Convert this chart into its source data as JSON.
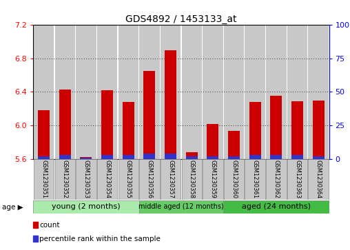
{
  "title": "GDS4892 / 1453133_at",
  "samples": [
    "GSM1230351",
    "GSM1230352",
    "GSM1230353",
    "GSM1230354",
    "GSM1230355",
    "GSM1230356",
    "GSM1230357",
    "GSM1230358",
    "GSM1230359",
    "GSM1230360",
    "GSM1230361",
    "GSM1230362",
    "GSM1230363",
    "GSM1230364"
  ],
  "count_values": [
    6.18,
    6.43,
    5.62,
    6.42,
    6.28,
    6.65,
    6.9,
    5.68,
    6.02,
    5.93,
    6.28,
    6.35,
    6.29,
    6.3
  ],
  "percentile_values": [
    2,
    3,
    1,
    3,
    3,
    4,
    4,
    2,
    2,
    2,
    3,
    3,
    3,
    2
  ],
  "y_min": 5.6,
  "y_max": 7.2,
  "y_ticks_left": [
    5.6,
    6.0,
    6.4,
    6.8,
    7.2
  ],
  "y_ticks_right": [
    0,
    25,
    50,
    75,
    100
  ],
  "bar_color_red": "#cc0000",
  "bar_color_blue": "#3333cc",
  "bar_width": 0.55,
  "blue_bar_width": 0.55,
  "groups": [
    {
      "label": "young (2 months)",
      "start": 0,
      "end": 5,
      "color": "#aaeaaa"
    },
    {
      "label": "middle aged (12 months)",
      "start": 5,
      "end": 9,
      "color": "#66cc66"
    },
    {
      "label": "aged (24 months)",
      "start": 9,
      "end": 14,
      "color": "#44bb44"
    }
  ],
  "age_label": "age",
  "legend_count_label": "count",
  "legend_pct_label": "percentile rank within the sample",
  "grid_color": "#000000",
  "bar_bg_color": "#c8c8c8",
  "fig_bg": "#ffffff"
}
